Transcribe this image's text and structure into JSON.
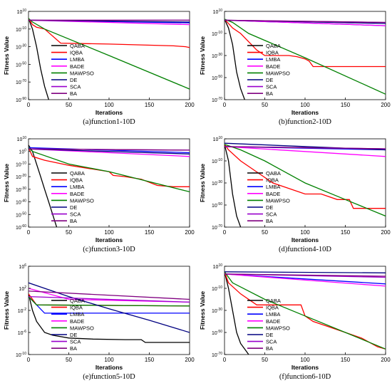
{
  "colors": {
    "QABA": "#000000",
    "IQBA": "#ff0000",
    "LMBA": "#0000ff",
    "BADE": "#ff00ff",
    "MAWPSO": "#008000",
    "DE": "#000080",
    "SCA": "#9900cc",
    "BA": "#800080"
  },
  "chart_data": [
    {
      "type": "line",
      "caption": "(a)function1-10D",
      "xlabel": "Iterations",
      "ylabel": "Fitness Value",
      "xlim": [
        0,
        200
      ],
      "ylim_log10": [
        -90,
        10
      ],
      "x_ticks": [
        0,
        50,
        100,
        150,
        200
      ],
      "y_ticks": [
        "10",
        "-10",
        "-30",
        "-50",
        "-70",
        "-90"
      ],
      "legend_position": "center",
      "series": [
        {
          "name": "QABA",
          "x": [
            0,
            5,
            10,
            15,
            20,
            25
          ],
          "y": [
            2,
            -10,
            -30,
            -55,
            -75,
            -90
          ]
        },
        {
          "name": "IQBA",
          "x": [
            0,
            5,
            10,
            20,
            40,
            100,
            180,
            195,
            200
          ],
          "y": [
            2,
            -5,
            -8,
            -10,
            -26,
            -27,
            -29,
            -30,
            -31
          ]
        },
        {
          "name": "LMBA",
          "x": [
            0,
            200
          ],
          "y": [
            0,
            -3
          ]
        },
        {
          "name": "BADE",
          "x": [
            0,
            200
          ],
          "y": [
            0,
            -5
          ]
        },
        {
          "name": "MAWPSO",
          "x": [
            0,
            5,
            20,
            100,
            200
          ],
          "y": [
            2,
            -2,
            -10,
            -40,
            -78
          ]
        },
        {
          "name": "DE",
          "x": [
            0,
            200
          ],
          "y": [
            0,
            -2
          ]
        },
        {
          "name": "SCA",
          "x": [
            0,
            200
          ],
          "y": [
            0,
            0
          ]
        },
        {
          "name": "BA",
          "x": [
            0,
            200
          ],
          "y": [
            0,
            0
          ]
        }
      ]
    },
    {
      "type": "line",
      "caption": "(b)function2-10D",
      "xlabel": "Iterations",
      "ylabel": "Fitness Value",
      "xlim": [
        0,
        200
      ],
      "ylim_log10": [
        -70,
        10
      ],
      "x_ticks": [
        0,
        50,
        100,
        150,
        200
      ],
      "y_ticks": [
        "10",
        "-10",
        "-30",
        "-50",
        "-70"
      ],
      "legend_position": "center",
      "series": [
        {
          "name": "QABA",
          "x": [
            0,
            5,
            10,
            15,
            20,
            25
          ],
          "y": [
            3,
            -5,
            -20,
            -45,
            -60,
            -70
          ]
        },
        {
          "name": "IQBA",
          "x": [
            0,
            10,
            20,
            40,
            50,
            80,
            90,
            100,
            105,
            110,
            200
          ],
          "y": [
            3,
            -5,
            -10,
            -25,
            -30,
            -30,
            -31,
            -33,
            -35,
            -40,
            -40
          ]
        },
        {
          "name": "LMBA",
          "x": [
            0,
            200
          ],
          "y": [
            2,
            -3
          ]
        },
        {
          "name": "BADE",
          "x": [
            0,
            200
          ],
          "y": [
            2,
            -3
          ]
        },
        {
          "name": "MAWPSO",
          "x": [
            0,
            10,
            30,
            100,
            200
          ],
          "y": [
            3,
            0,
            -10,
            -32,
            -65
          ]
        },
        {
          "name": "DE",
          "x": [
            0,
            200
          ],
          "y": [
            2,
            -1
          ]
        },
        {
          "name": "SCA",
          "x": [
            0,
            200
          ],
          "y": [
            2,
            0
          ]
        },
        {
          "name": "BA",
          "x": [
            0,
            200
          ],
          "y": [
            2,
            0
          ]
        }
      ]
    },
    {
      "type": "line",
      "caption": "(c)function3-10D",
      "xlabel": "Iterations",
      "ylabel": "Fitness Value",
      "xlim": [
        0,
        200
      ],
      "ylim_log10": [
        -60,
        10
      ],
      "x_ticks": [
        0,
        50,
        100,
        150,
        200
      ],
      "y_ticks": [
        "10",
        "0",
        "-10",
        "-20",
        "-30",
        "-40",
        "-50",
        "-60"
      ],
      "legend_position": "center",
      "series": [
        {
          "name": "QABA",
          "x": [
            0,
            5,
            10,
            15,
            20,
            25,
            30,
            35
          ],
          "y": [
            5,
            0,
            -10,
            -20,
            -30,
            -40,
            -50,
            -60
          ]
        },
        {
          "name": "IQBA",
          "x": [
            0,
            5,
            20,
            50,
            100,
            105,
            120,
            140,
            160,
            180,
            200
          ],
          "y": [
            3,
            -4,
            -7,
            -11,
            -16,
            -19,
            -20,
            -22,
            -27,
            -28,
            -28
          ]
        },
        {
          "name": "LMBA",
          "x": [
            0,
            200
          ],
          "y": [
            3,
            -1
          ]
        },
        {
          "name": "BADE",
          "x": [
            0,
            200
          ],
          "y": [
            2,
            -4
          ]
        },
        {
          "name": "MAWPSO",
          "x": [
            0,
            5,
            50,
            100,
            200
          ],
          "y": [
            3,
            0,
            -10,
            -16,
            -32
          ]
        },
        {
          "name": "DE",
          "x": [
            0,
            200
          ],
          "y": [
            2,
            -2
          ]
        },
        {
          "name": "SCA",
          "x": [
            0,
            200
          ],
          "y": [
            2,
            1
          ]
        },
        {
          "name": "BA",
          "x": [
            0,
            200
          ],
          "y": [
            2,
            1
          ]
        }
      ]
    },
    {
      "type": "line",
      "caption": "(d)function4-10D",
      "xlabel": "Iterations",
      "ylabel": "Fitness Value",
      "xlim": [
        0,
        200
      ],
      "ylim_log10": [
        -70,
        10
      ],
      "x_ticks": [
        0,
        50,
        100,
        150,
        200
      ],
      "y_ticks": [
        "10",
        "-10",
        "-30",
        "-50",
        "-70"
      ],
      "legend_position": "center",
      "series": [
        {
          "name": "QABA",
          "x": [
            0,
            5,
            10,
            15,
            20
          ],
          "y": [
            5,
            -10,
            -40,
            -60,
            -70
          ]
        },
        {
          "name": "IQBA",
          "x": [
            0,
            5,
            20,
            40,
            60,
            80,
            100,
            120,
            140,
            155,
            160,
            200
          ],
          "y": [
            5,
            0,
            -10,
            -20,
            -30,
            -35,
            -40,
            -40,
            -45,
            -45,
            -53,
            -53
          ]
        },
        {
          "name": "LMBA",
          "x": [
            0,
            200
          ],
          "y": [
            3,
            0
          ]
        },
        {
          "name": "BADE",
          "x": [
            0,
            200
          ],
          "y": [
            3,
            -6
          ]
        },
        {
          "name": "MAWPSO",
          "x": [
            0,
            20,
            50,
            100,
            150,
            200
          ],
          "y": [
            5,
            0,
            -10,
            -30,
            -45,
            -60
          ]
        },
        {
          "name": "DE",
          "x": [
            0,
            200
          ],
          "y": [
            6,
            0
          ]
        },
        {
          "name": "SCA",
          "x": [
            0,
            200
          ],
          "y": [
            3,
            1
          ]
        },
        {
          "name": "BA",
          "x": [
            0,
            200
          ],
          "y": [
            3,
            1
          ]
        }
      ]
    },
    {
      "type": "line",
      "caption": "(e)function5-10D",
      "xlabel": "Iterations",
      "ylabel": "Fitness Value",
      "xlim": [
        0,
        200
      ],
      "ylim_log10": [
        -10,
        6
      ],
      "x_ticks": [
        0,
        50,
        100,
        150,
        200
      ],
      "y_ticks": [
        "6",
        "2",
        "-2",
        "-6",
        "-10"
      ],
      "legend_position": "center",
      "series": [
        {
          "name": "QABA",
          "x": [
            0,
            5,
            10,
            20,
            30,
            50,
            80,
            120,
            140,
            145,
            150,
            200
          ],
          "y": [
            1,
            -2,
            -4,
            -6,
            -6.5,
            -7,
            -7.2,
            -7.3,
            -7.3,
            -7.8,
            -7.8,
            -7.8
          ]
        },
        {
          "name": "IQBA",
          "x": [
            0,
            10,
            200
          ],
          "y": [
            1,
            -1,
            -1.2
          ]
        },
        {
          "name": "LMBA",
          "x": [
            0,
            20,
            200
          ],
          "y": [
            0.5,
            -2.5,
            -2.5
          ]
        },
        {
          "name": "BADE",
          "x": [
            0,
            50,
            200
          ],
          "y": [
            2,
            0,
            -0.5
          ]
        },
        {
          "name": "MAWPSO",
          "x": [
            0,
            10,
            200
          ],
          "y": [
            0.5,
            -1,
            -1.2
          ]
        },
        {
          "name": "DE",
          "x": [
            0,
            50,
            100,
            150,
            200
          ],
          "y": [
            3,
            0.5,
            -1.7,
            -3.8,
            -6
          ]
        },
        {
          "name": "SCA",
          "x": [
            0,
            200
          ],
          "y": [
            0.5,
            -0.5
          ]
        },
        {
          "name": "BA",
          "x": [
            0,
            200
          ],
          "y": [
            1.5,
            0
          ]
        }
      ]
    },
    {
      "type": "line",
      "caption": "(f)function6-10D",
      "xlabel": "Iterations",
      "ylabel": "Fitness Value",
      "xlim": [
        0,
        200
      ],
      "ylim_log10": [
        -70,
        10
      ],
      "x_ticks": [
        0,
        50,
        100,
        150,
        200
      ],
      "y_ticks": [
        "10",
        "-10",
        "-30",
        "-50",
        "-70"
      ],
      "legend_position": "center",
      "series": [
        {
          "name": "QABA",
          "x": [
            0,
            5,
            10,
            15,
            20,
            25,
            30
          ],
          "y": [
            5,
            -10,
            -30,
            -50,
            -60,
            -65,
            -70
          ]
        },
        {
          "name": "IQBA",
          "x": [
            0,
            5,
            20,
            40,
            95,
            100,
            110,
            130,
            150,
            170,
            190,
            200
          ],
          "y": [
            5,
            -5,
            -15,
            -25,
            -25,
            -35,
            -40,
            -45,
            -50,
            -55,
            -63,
            -65
          ]
        },
        {
          "name": "LMBA",
          "x": [
            0,
            200
          ],
          "y": [
            3,
            -6
          ]
        },
        {
          "name": "BADE",
          "x": [
            0,
            200
          ],
          "y": [
            3,
            -8
          ]
        },
        {
          "name": "MAWPSO",
          "x": [
            0,
            10,
            50,
            100,
            150,
            200
          ],
          "y": [
            5,
            -5,
            -20,
            -35,
            -50,
            -65
          ]
        },
        {
          "name": "DE",
          "x": [
            0,
            200
          ],
          "y": [
            5,
            4
          ]
        },
        {
          "name": "SCA",
          "x": [
            0,
            200
          ],
          "y": [
            3,
            0
          ]
        },
        {
          "name": "BA",
          "x": [
            0,
            200
          ],
          "y": [
            3,
            1
          ]
        }
      ]
    }
  ]
}
